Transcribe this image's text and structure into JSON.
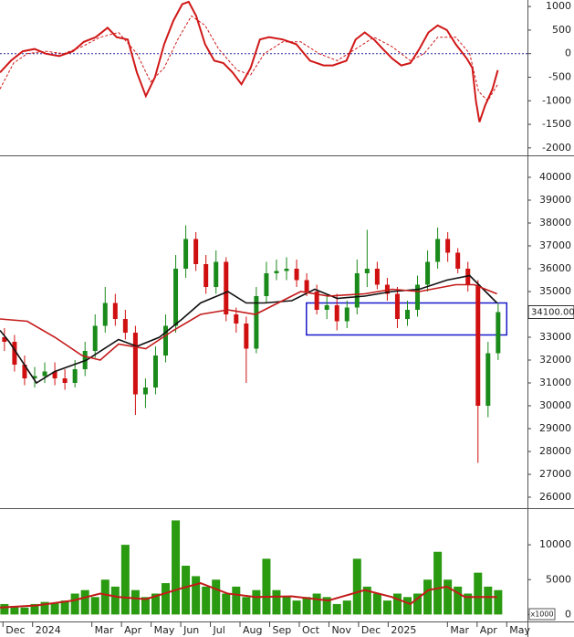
{
  "chart_data": [
    {
      "type": "line",
      "xlim": [
        -0.1,
        17.7
      ],
      "ylim": [
        -2120,
        1100
      ],
      "yticks": [
        1000,
        500,
        0,
        -500,
        -1000,
        -1500,
        -2000
      ],
      "zero_line": true,
      "series": [
        {
          "color": "#d01818",
          "style": "solid",
          "x": [
            -0.1,
            0.27,
            0.67,
            1.07,
            1.44,
            1.9,
            2.36,
            2.73,
            3.13,
            3.53,
            3.84,
            4.21,
            4.52,
            4.82,
            5.13,
            5.44,
            5.75,
            6.05,
            6.27,
            6.52,
            6.82,
            7.13,
            7.44,
            7.75,
            8.05,
            8.36,
            8.67,
            8.98,
            9.44,
            9.9,
            10.36,
            10.82,
            11.13,
            11.59,
            11.9,
            12.21,
            12.52,
            12.82,
            13.13,
            13.44,
            13.75,
            14.05,
            14.36,
            14.67,
            14.98,
            15.28,
            15.65,
            15.84,
            15.96,
            16.08,
            16.27,
            16.52,
            16.7
          ],
          "values": [
            -400,
            -150,
            50,
            100,
            0,
            -50,
            50,
            250,
            350,
            550,
            350,
            300,
            -400,
            -900,
            -500,
            200,
            700,
            1050,
            1100,
            800,
            200,
            -150,
            -200,
            -400,
            -650,
            -300,
            300,
            350,
            300,
            200,
            -150,
            -250,
            -250,
            -150,
            300,
            450,
            300,
            100,
            -100,
            -250,
            -200,
            100,
            450,
            600,
            500,
            200,
            -100,
            -300,
            -1000,
            -1450,
            -1100,
            -750,
            -350
          ]
        },
        {
          "color": "#d01818",
          "style": "dashed",
          "x": [
            -0.1,
            0.36,
            0.82,
            1.44,
            2.05,
            2.67,
            3.28,
            3.9,
            4.52,
            4.98,
            5.44,
            5.9,
            6.36,
            6.82,
            7.28,
            7.9,
            8.36,
            8.82,
            9.44,
            10.05,
            10.67,
            11.28,
            11.9,
            12.52,
            13.13,
            13.75,
            14.21,
            14.67,
            15.28,
            15.75,
            16.05,
            16.36,
            16.7
          ],
          "values": [
            -750,
            -200,
            0,
            50,
            0,
            150,
            350,
            450,
            0,
            -600,
            -300,
            300,
            800,
            600,
            100,
            -350,
            -450,
            0,
            250,
            250,
            0,
            -150,
            100,
            350,
            150,
            -150,
            0,
            350,
            350,
            0,
            -800,
            -1000,
            -650
          ]
        }
      ]
    },
    {
      "type": "candlestick",
      "xlim": [
        -0.1,
        17.7
      ],
      "ylim": [
        25560,
        40880
      ],
      "yticks": [
        40000,
        39000,
        38000,
        37000,
        36000,
        35000,
        34000,
        33000,
        32000,
        31000,
        30000,
        29000,
        28000,
        27000,
        26000
      ],
      "up_color": "#1a8a1a",
      "down_color": "#d01010",
      "x": [
        0.05,
        0.39,
        0.73,
        1.07,
        1.41,
        1.75,
        2.09,
        2.43,
        2.77,
        3.11,
        3.45,
        3.79,
        4.13,
        4.47,
        4.81,
        5.15,
        5.49,
        5.83,
        6.17,
        6.51,
        6.85,
        7.19,
        7.53,
        7.87,
        8.21,
        8.55,
        8.89,
        9.23,
        9.57,
        9.91,
        10.25,
        10.59,
        10.93,
        11.27,
        11.61,
        11.95,
        12.29,
        12.63,
        12.97,
        13.31,
        13.65,
        13.99,
        14.33,
        14.67,
        15.01,
        15.35,
        15.69,
        16.03,
        16.37,
        16.71
      ],
      "open": [
        33000,
        32800,
        31800,
        31200,
        31300,
        31500,
        31200,
        31000,
        31600,
        32400,
        33500,
        34500,
        33800,
        33200,
        30500,
        30800,
        32200,
        33500,
        36000,
        37300,
        36200,
        35200,
        36300,
        34000,
        33600,
        32500,
        34800,
        35800,
        35900,
        36000,
        35500,
        35000,
        34200,
        34400,
        33700,
        34300,
        35800,
        36000,
        35300,
        34900,
        33800,
        34200,
        35300,
        36300,
        37300,
        36700,
        36000,
        35300,
        30000,
        32300
      ],
      "high": [
        33400,
        33100,
        32200,
        31700,
        31900,
        31900,
        31600,
        32000,
        32800,
        34000,
        35200,
        34900,
        34200,
        33500,
        31200,
        32600,
        34000,
        36600,
        37900,
        37600,
        36600,
        36800,
        36500,
        34300,
        33900,
        35200,
        36300,
        36400,
        36500,
        36400,
        35800,
        35300,
        34800,
        34900,
        34600,
        36400,
        37700,
        36300,
        35600,
        35200,
        34600,
        35700,
        36800,
        37800,
        37600,
        36900,
        36300,
        35500,
        32800,
        34500
      ],
      "low": [
        32400,
        31500,
        30900,
        30800,
        31000,
        30900,
        30700,
        30800,
        31300,
        32100,
        33200,
        33500,
        32900,
        29600,
        29900,
        30500,
        31900,
        33200,
        35600,
        35900,
        34900,
        34900,
        33700,
        33200,
        31000,
        32300,
        34500,
        35500,
        35500,
        35200,
        34800,
        34000,
        33800,
        33300,
        33400,
        34000,
        35200,
        35100,
        34600,
        33400,
        33500,
        33900,
        35000,
        36000,
        36300,
        35800,
        35000,
        27500,
        29500,
        32000
      ],
      "close": [
        32800,
        31800,
        31200,
        31300,
        31500,
        31200,
        31000,
        31600,
        32400,
        33500,
        34500,
        33800,
        33200,
        30500,
        30800,
        32200,
        33500,
        36000,
        37300,
        36200,
        35200,
        36300,
        34000,
        33600,
        32500,
        34800,
        35800,
        35900,
        36000,
        35500,
        35000,
        34200,
        34400,
        33700,
        34300,
        35800,
        36000,
        35300,
        34900,
        33800,
        34200,
        35300,
        36300,
        37300,
        36700,
        36000,
        35300,
        30000,
        32300,
        34100
      ],
      "series": [
        {
          "color": "#111111",
          "x": [
            -0.1,
            0.21,
            1.13,
            1.75,
            2.82,
            3.9,
            4.52,
            5.28,
            6.05,
            6.67,
            7.59,
            8.21,
            8.82,
            9.75,
            10.52,
            11.28,
            12.21,
            13.13,
            14.05,
            14.98,
            15.75,
            16.21,
            16.67
          ],
          "values": [
            33300,
            32800,
            31000,
            31500,
            32000,
            32900,
            32600,
            33000,
            33800,
            34500,
            35000,
            34500,
            34500,
            34600,
            35100,
            34700,
            34800,
            35000,
            35100,
            35500,
            35700,
            35100,
            34500
          ]
        },
        {
          "color": "#c41a1a",
          "x": [
            -0.1,
            0.82,
            1.75,
            2.67,
            3.28,
            3.9,
            4.82,
            5.75,
            6.67,
            7.59,
            8.52,
            9.13,
            10.05,
            10.98,
            12.21,
            13.13,
            14.05,
            15.28,
            15.9,
            16.67
          ],
          "values": [
            33800,
            33700,
            33000,
            32200,
            32000,
            32700,
            32500,
            33300,
            34000,
            34200,
            34000,
            34400,
            35000,
            34800,
            34900,
            35100,
            35000,
            35300,
            35300,
            34900
          ]
        }
      ],
      "box": {
        "x": [
          10.24,
          17.0
        ],
        "y": [
          33100,
          34500
        ],
        "color": "#1a1acc"
      },
      "last_price": {
        "value": 34100,
        "label": "34100.00"
      }
    },
    {
      "type": "bar",
      "xlim": [
        -0.1,
        17.7
      ],
      "ylim": [
        -1000,
        15000
      ],
      "yticks": [
        10000,
        5000,
        0
      ],
      "unit_label": "x1000",
      "color": "#2a9a10",
      "x": [
        0.05,
        0.39,
        0.73,
        1.07,
        1.41,
        1.75,
        2.09,
        2.43,
        2.77,
        3.11,
        3.45,
        3.79,
        4.13,
        4.47,
        4.81,
        5.15,
        5.49,
        5.83,
        6.17,
        6.51,
        6.85,
        7.19,
        7.53,
        7.87,
        8.21,
        8.55,
        8.89,
        9.23,
        9.57,
        9.91,
        10.25,
        10.59,
        10.93,
        11.27,
        11.61,
        11.95,
        12.29,
        12.63,
        12.97,
        13.31,
        13.65,
        13.99,
        14.33,
        14.67,
        15.01,
        15.35,
        15.69,
        16.03,
        16.37,
        16.71
      ],
      "values": [
        1500,
        1200,
        1000,
        1500,
        1800,
        1600,
        2000,
        3000,
        3500,
        2500,
        5000,
        4000,
        10000,
        3500,
        2500,
        3000,
        4500,
        13500,
        7000,
        5500,
        4000,
        5000,
        3000,
        4000,
        2500,
        3500,
        8000,
        3500,
        2500,
        2000,
        2500,
        3000,
        2500,
        1500,
        2000,
        8000,
        4000,
        3000,
        2000,
        3000,
        2500,
        3000,
        5000,
        9000,
        5000,
        4000,
        3000,
        6000,
        4000,
        3500
      ],
      "series": [
        {
          "color": "#c41a1a",
          "x": [
            -0.1,
            1.13,
            2.36,
            3.28,
            3.9,
            4.82,
            6.05,
            6.67,
            7.59,
            8.52,
            9.75,
            10.98,
            12.21,
            13.13,
            13.75,
            14.36,
            14.98,
            15.59,
            16.67
          ],
          "values": [
            1000,
            1300,
            2000,
            3000,
            2500,
            2200,
            3800,
            4500,
            3000,
            2500,
            2600,
            2000,
            3500,
            2500,
            1500,
            3500,
            4000,
            2500,
            2500
          ]
        }
      ],
      "xticks": [
        {
          "value": 0,
          "label": "Dec"
        },
        {
          "value": 1,
          "label": "2024"
        },
        {
          "value": 3,
          "label": "Mar"
        },
        {
          "value": 4,
          "label": "Apr"
        },
        {
          "value": 5,
          "label": "May"
        },
        {
          "value": 6,
          "label": "Jun"
        },
        {
          "value": 7,
          "label": "Jul"
        },
        {
          "value": 8,
          "label": "Aug"
        },
        {
          "value": 9,
          "label": "Sep"
        },
        {
          "value": 10,
          "label": "Oct"
        },
        {
          "value": 11,
          "label": "Nov"
        },
        {
          "value": 12,
          "label": "Dec"
        },
        {
          "value": 13,
          "label": "2025"
        },
        {
          "value": 15,
          "label": "Mar"
        },
        {
          "value": 16,
          "label": "Apr"
        },
        {
          "value": 17,
          "label": "May"
        }
      ]
    }
  ]
}
